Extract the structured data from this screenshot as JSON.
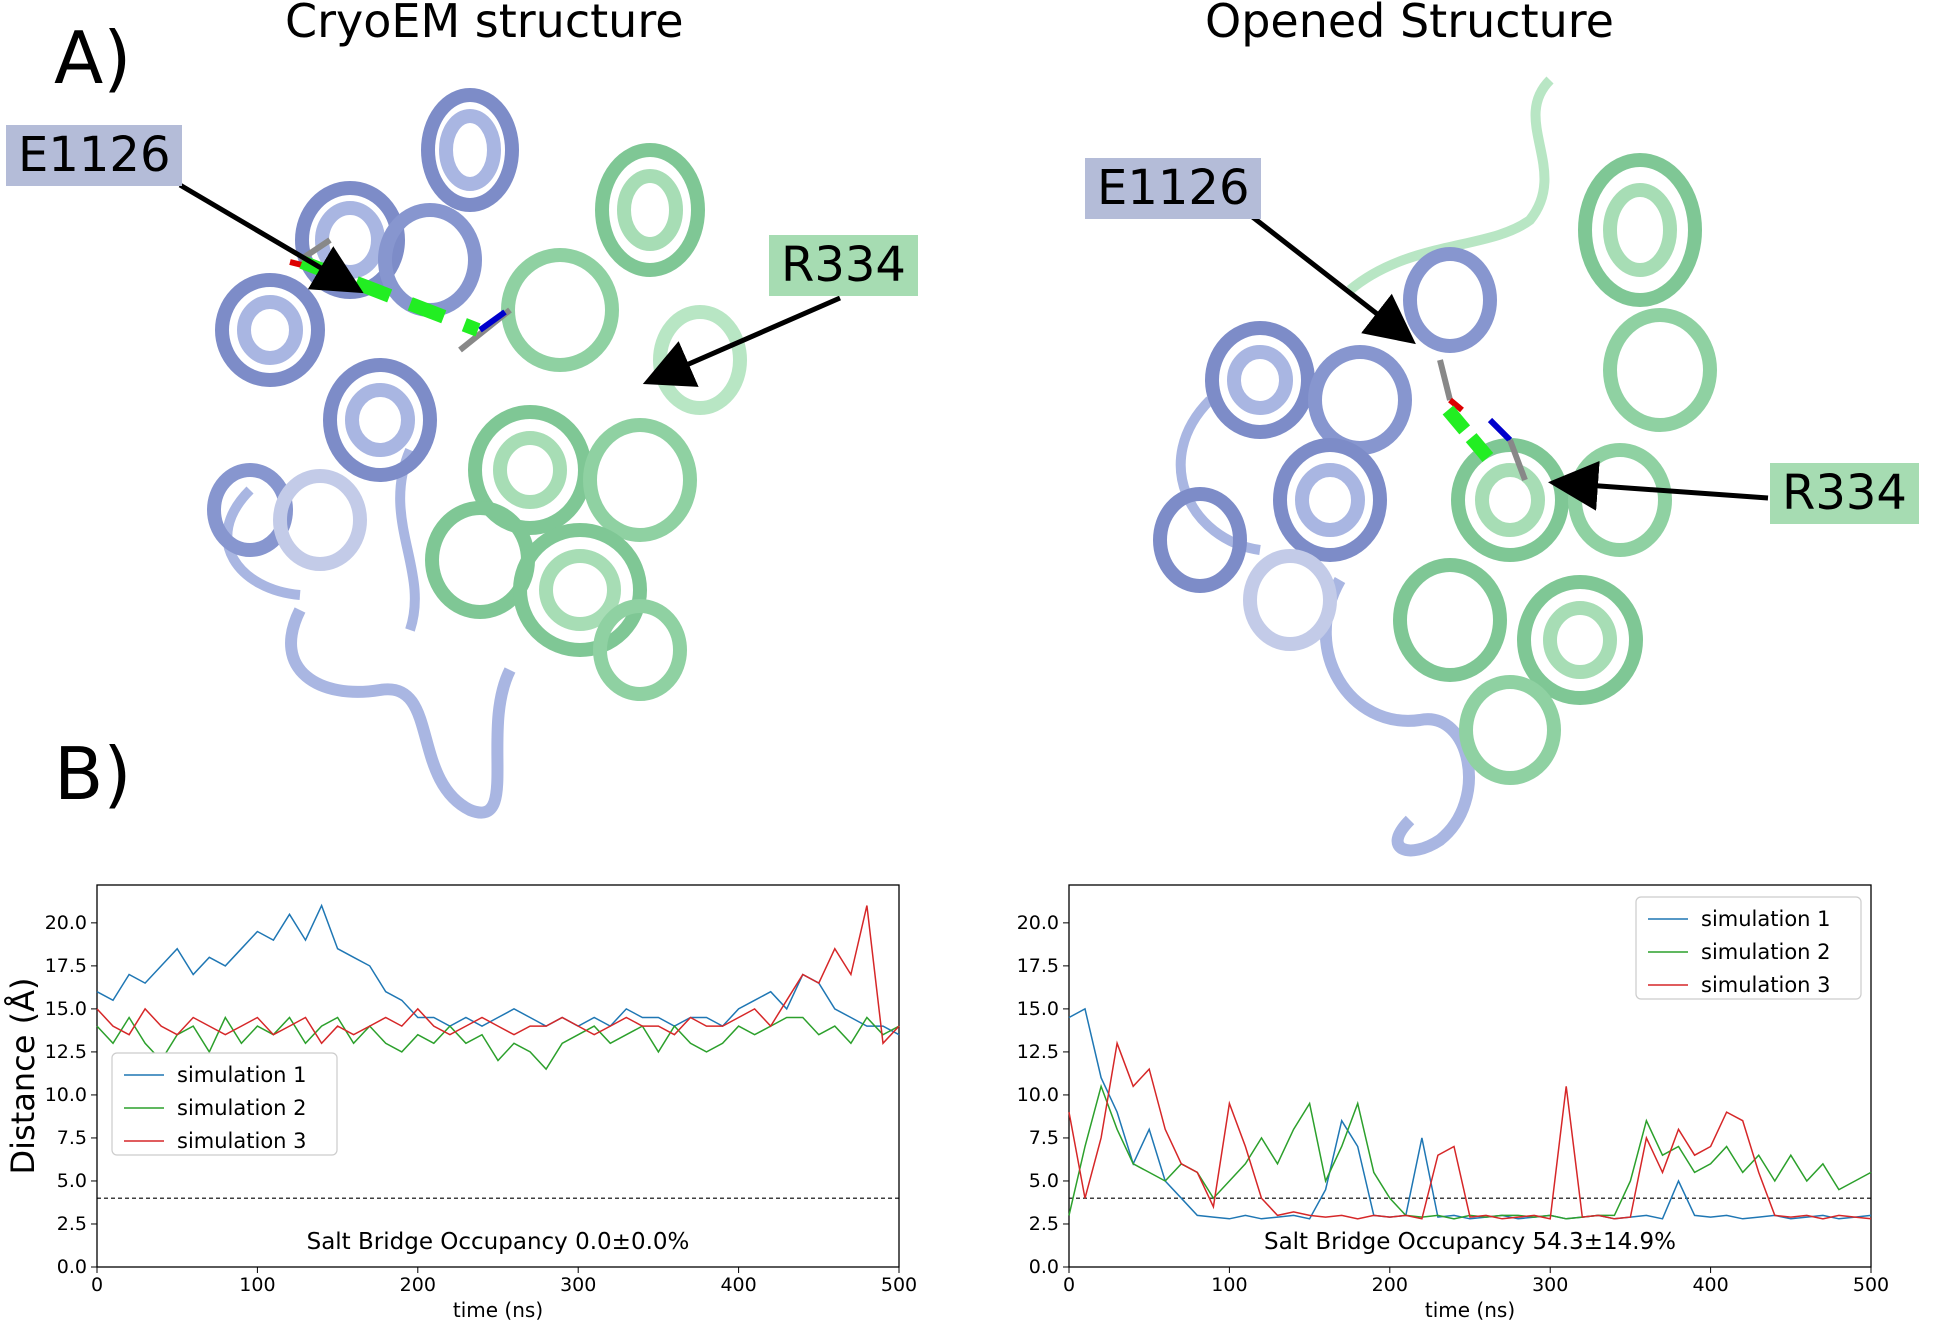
{
  "panel_a": {
    "label": "A)",
    "left": {
      "title": "CryoEM structure",
      "residue1": "E1126",
      "residue2": "R334"
    },
    "right": {
      "title": "Opened Structure",
      "residue1": "E1126",
      "residue2": "R334"
    }
  },
  "panel_b": {
    "label": "B)"
  },
  "colors": {
    "protein_blue": "#a9b6e2",
    "protein_green": "#a7ddb5",
    "bridge": "#22ee22",
    "sim1": "#1f77b4",
    "sim2": "#2ca02c",
    "sim3": "#d62728"
  },
  "chart_data": [
    {
      "type": "line",
      "xlabel": "time (ns)",
      "ylabel": "Distance (Å)",
      "xlim": [
        0,
        500
      ],
      "ylim": [
        0,
        22.2
      ],
      "xticks": [
        0,
        100,
        200,
        300,
        400,
        500
      ],
      "yticks": [
        "0.0",
        "2.5",
        "5.0",
        "7.5",
        "10.0",
        "12.5",
        "15.0",
        "17.5",
        "20.0"
      ],
      "threshold": 4.0,
      "legend_position": "lower-left",
      "annotation": "Salt Bridge Occupancy 0.0±0.0%",
      "series": [
        {
          "name": "simulation 1",
          "x": [
            0,
            10,
            20,
            30,
            40,
            50,
            60,
            70,
            80,
            90,
            100,
            110,
            120,
            130,
            140,
            150,
            160,
            170,
            180,
            190,
            200,
            210,
            220,
            230,
            240,
            250,
            260,
            270,
            280,
            290,
            300,
            310,
            320,
            330,
            340,
            350,
            360,
            370,
            380,
            390,
            400,
            410,
            420,
            430,
            440,
            450,
            460,
            470,
            480,
            490,
            500
          ],
          "values": [
            16.0,
            15.5,
            17.0,
            16.5,
            17.5,
            18.5,
            17.0,
            18.0,
            17.5,
            18.5,
            19.5,
            19.0,
            20.5,
            19.0,
            21.0,
            18.5,
            18.0,
            17.5,
            16.0,
            15.5,
            14.5,
            14.5,
            14.0,
            14.5,
            14.0,
            14.5,
            15.0,
            14.5,
            14.0,
            14.5,
            14.0,
            14.5,
            14.0,
            15.0,
            14.5,
            14.5,
            14.0,
            14.5,
            14.5,
            14.0,
            15.0,
            15.5,
            16.0,
            15.0,
            17.0,
            16.5,
            15.0,
            14.5,
            14.0,
            14.0,
            13.5
          ]
        },
        {
          "name": "simulation 2",
          "x": [
            0,
            10,
            20,
            30,
            40,
            50,
            60,
            70,
            80,
            90,
            100,
            110,
            120,
            130,
            140,
            150,
            160,
            170,
            180,
            190,
            200,
            210,
            220,
            230,
            240,
            250,
            260,
            270,
            280,
            290,
            300,
            310,
            320,
            330,
            340,
            350,
            360,
            370,
            380,
            390,
            400,
            410,
            420,
            430,
            440,
            450,
            460,
            470,
            480,
            490,
            500
          ],
          "values": [
            14.0,
            13.0,
            14.5,
            13.0,
            12.0,
            13.5,
            14.0,
            12.5,
            14.5,
            13.0,
            14.0,
            13.5,
            14.5,
            13.0,
            14.0,
            14.5,
            13.0,
            14.0,
            13.0,
            12.5,
            13.5,
            13.0,
            14.0,
            13.0,
            13.5,
            12.0,
            13.0,
            12.5,
            11.5,
            13.0,
            13.5,
            14.0,
            13.0,
            13.5,
            14.0,
            12.5,
            14.0,
            13.0,
            12.5,
            13.0,
            14.0,
            13.5,
            14.0,
            14.5,
            14.5,
            13.5,
            14.0,
            13.0,
            14.5,
            13.5,
            14.0
          ]
        },
        {
          "name": "simulation 3",
          "x": [
            0,
            10,
            20,
            30,
            40,
            50,
            60,
            70,
            80,
            90,
            100,
            110,
            120,
            130,
            140,
            150,
            160,
            170,
            180,
            190,
            200,
            210,
            220,
            230,
            240,
            250,
            260,
            270,
            280,
            290,
            300,
            310,
            320,
            330,
            340,
            350,
            360,
            370,
            380,
            390,
            400,
            410,
            420,
            430,
            440,
            450,
            460,
            470,
            480,
            490,
            500
          ],
          "values": [
            15.0,
            14.0,
            13.5,
            15.0,
            14.0,
            13.5,
            14.5,
            14.0,
            13.5,
            14.0,
            14.5,
            13.5,
            14.0,
            14.5,
            13.0,
            14.0,
            13.5,
            14.0,
            14.5,
            14.0,
            15.0,
            14.0,
            13.5,
            14.0,
            14.5,
            14.0,
            13.5,
            14.0,
            14.0,
            14.5,
            14.0,
            13.5,
            14.0,
            14.5,
            14.0,
            14.0,
            13.5,
            14.5,
            14.0,
            14.0,
            14.5,
            15.0,
            14.0,
            15.5,
            17.0,
            16.5,
            18.5,
            17.0,
            21.0,
            13.0,
            14.0
          ]
        }
      ]
    },
    {
      "type": "line",
      "xlabel": "time (ns)",
      "ylabel": "",
      "xlim": [
        0,
        500
      ],
      "ylim": [
        0,
        22.2
      ],
      "xticks": [
        0,
        100,
        200,
        300,
        400,
        500
      ],
      "yticks": [
        "0.0",
        "2.5",
        "5.0",
        "7.5",
        "10.0",
        "12.5",
        "15.0",
        "17.5",
        "20.0"
      ],
      "threshold": 4.0,
      "legend_position": "upper-right",
      "annotation": "Salt Bridge Occupancy 54.3±14.9%",
      "series": [
        {
          "name": "simulation 1",
          "x": [
            0,
            10,
            20,
            30,
            40,
            50,
            60,
            70,
            80,
            90,
            100,
            110,
            120,
            130,
            140,
            150,
            160,
            170,
            180,
            190,
            200,
            210,
            220,
            230,
            240,
            250,
            260,
            270,
            280,
            290,
            300,
            310,
            320,
            330,
            340,
            350,
            360,
            370,
            380,
            390,
            400,
            410,
            420,
            430,
            440,
            450,
            460,
            470,
            480,
            490,
            500
          ],
          "values": [
            14.5,
            15.0,
            11.0,
            9.0,
            6.0,
            8.0,
            5.0,
            4.0,
            3.0,
            2.9,
            2.8,
            3.0,
            2.8,
            2.9,
            3.0,
            2.8,
            4.5,
            8.5,
            7.0,
            3.0,
            2.9,
            3.0,
            7.5,
            2.9,
            3.0,
            2.8,
            2.9,
            3.0,
            2.8,
            2.9,
            3.0,
            2.8,
            2.9,
            3.0,
            2.8,
            2.9,
            3.0,
            2.8,
            5.0,
            3.0,
            2.9,
            3.0,
            2.8,
            2.9,
            3.0,
            2.8,
            2.9,
            3.0,
            2.8,
            2.9,
            3.0
          ]
        },
        {
          "name": "simulation 2",
          "x": [
            0,
            10,
            20,
            30,
            40,
            50,
            60,
            70,
            80,
            90,
            100,
            110,
            120,
            130,
            140,
            150,
            160,
            170,
            180,
            190,
            200,
            210,
            220,
            230,
            240,
            250,
            260,
            270,
            280,
            290,
            300,
            310,
            320,
            330,
            340,
            350,
            360,
            370,
            380,
            390,
            400,
            410,
            420,
            430,
            440,
            450,
            460,
            470,
            480,
            490,
            500
          ],
          "values": [
            3.0,
            7.0,
            10.5,
            8.0,
            6.0,
            5.5,
            5.0,
            6.0,
            5.5,
            4.0,
            5.0,
            6.0,
            7.5,
            6.0,
            8.0,
            9.5,
            5.0,
            7.0,
            9.5,
            5.5,
            4.0,
            3.0,
            2.9,
            3.0,
            2.8,
            3.0,
            2.9,
            3.0,
            3.0,
            2.9,
            3.0,
            2.8,
            2.9,
            3.0,
            3.0,
            5.0,
            8.5,
            6.5,
            7.0,
            5.5,
            6.0,
            7.0,
            5.5,
            6.5,
            5.0,
            6.5,
            5.0,
            6.0,
            4.5,
            5.0,
            5.5
          ]
        },
        {
          "name": "simulation 3",
          "x": [
            0,
            10,
            20,
            30,
            40,
            50,
            60,
            70,
            80,
            90,
            100,
            110,
            120,
            130,
            140,
            150,
            160,
            170,
            180,
            190,
            200,
            210,
            220,
            230,
            240,
            250,
            260,
            270,
            280,
            290,
            300,
            310,
            320,
            330,
            340,
            350,
            360,
            370,
            380,
            390,
            400,
            410,
            420,
            430,
            440,
            450,
            460,
            470,
            480,
            490,
            500
          ],
          "values": [
            9.0,
            4.0,
            7.5,
            13.0,
            10.5,
            11.5,
            8.0,
            6.0,
            5.5,
            3.5,
            9.5,
            7.0,
            4.0,
            3.0,
            3.2,
            3.0,
            2.9,
            3.0,
            2.8,
            3.0,
            2.9,
            3.0,
            2.8,
            6.5,
            7.0,
            2.9,
            3.0,
            2.8,
            2.9,
            3.0,
            2.8,
            10.5,
            2.9,
            3.0,
            2.8,
            2.9,
            7.5,
            5.5,
            8.0,
            6.5,
            7.0,
            9.0,
            8.5,
            5.5,
            3.0,
            2.9,
            3.0,
            2.8,
            3.0,
            2.9,
            2.8
          ]
        }
      ]
    }
  ]
}
